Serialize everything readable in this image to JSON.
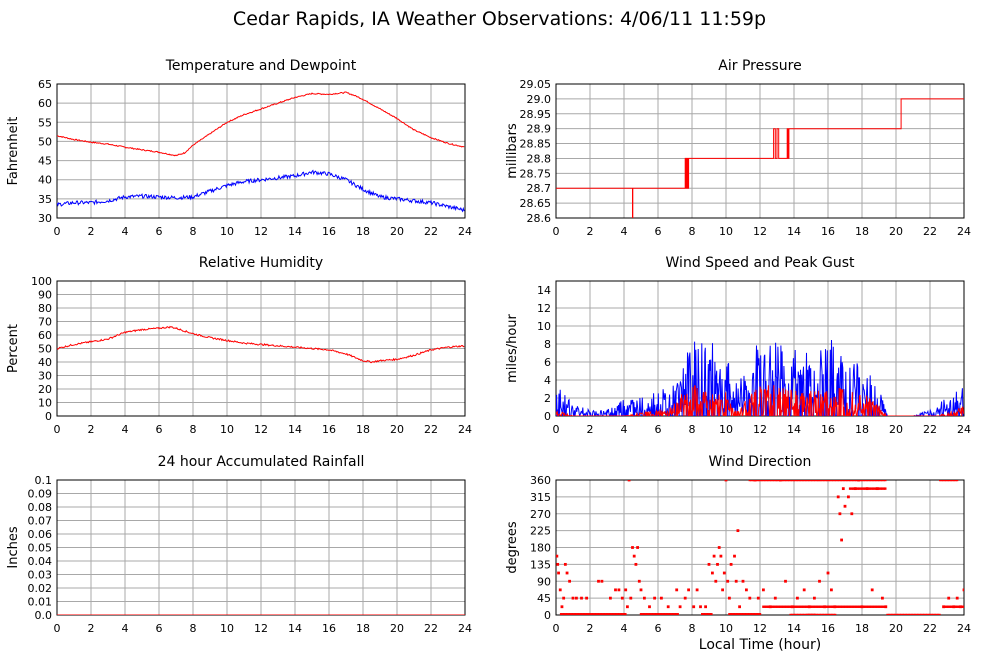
{
  "page": {
    "title": "Cedar Rapids, IA Weather Observations: 4/06/11 11:59p",
    "x_axis_label": "Local Time (hour)"
  },
  "chart_data": [
    {
      "id": "temp",
      "type": "line",
      "title": "Temperature and Dewpoint",
      "xlabel": "",
      "ylabel": "Fahrenheit",
      "xlim": [
        0,
        24
      ],
      "ylim": [
        30,
        65
      ],
      "xticks": [
        0,
        2,
        4,
        6,
        8,
        10,
        12,
        14,
        16,
        18,
        20,
        22,
        24
      ],
      "yticks": [
        30,
        35,
        40,
        45,
        50,
        55,
        60,
        65
      ],
      "grid": true,
      "series": [
        {
          "color": "#ff0000",
          "noise": 0.15,
          "x": [
            0,
            1,
            2,
            3,
            4,
            5,
            6,
            7,
            7.5,
            8,
            9,
            10,
            11,
            12,
            13,
            14,
            15,
            16,
            17,
            17.5,
            18,
            19,
            20,
            21,
            22,
            23,
            24
          ],
          "y": [
            51.5,
            50.5,
            49.8,
            49.3,
            48.5,
            47.8,
            47.2,
            46.3,
            47,
            49,
            52,
            55,
            57,
            58.5,
            60,
            61.5,
            62.5,
            62.3,
            62.8,
            62,
            61,
            58.5,
            56,
            53,
            51,
            49.5,
            48.5
          ]
        },
        {
          "color": "#0000ff",
          "noise": 0.5,
          "x": [
            0,
            1,
            2,
            3,
            4,
            5,
            6,
            7,
            8,
            9,
            10,
            11,
            12,
            13,
            14,
            15,
            16,
            17,
            18,
            19,
            20,
            21,
            22,
            23,
            24
          ],
          "y": [
            33.5,
            34,
            34,
            34.5,
            35.5,
            35.7,
            35.5,
            35.3,
            35.5,
            37,
            38.5,
            39.5,
            40,
            40.5,
            41,
            42,
            41.5,
            40,
            37.5,
            35.5,
            35,
            34.5,
            34,
            33,
            32
          ]
        }
      ]
    },
    {
      "id": "pressure",
      "type": "line",
      "title": "Air Pressure",
      "xlabel": "",
      "ylabel": "millibars",
      "xlim": [
        0,
        24
      ],
      "ylim": [
        28.6,
        29.05
      ],
      "xticks": [
        0,
        2,
        4,
        6,
        8,
        10,
        12,
        14,
        16,
        18,
        20,
        22,
        24
      ],
      "yticks": [
        28.6,
        28.65,
        28.7,
        28.75,
        28.8,
        28.85,
        28.9,
        28.95,
        29.0,
        29.05
      ],
      "ytick_labels": [
        "28.6",
        "28.65",
        "28.7",
        "28.75",
        "28.8",
        "28.85",
        "28.9",
        "28.95",
        "29.0",
        "29.05"
      ],
      "grid": true,
      "series": [
        {
          "color": "#ff0000",
          "noise": 0,
          "x": [
            0,
            4.5,
            4.5,
            4.52,
            4.52,
            7.6,
            7.6,
            7.65,
            7.65,
            7.7,
            7.7,
            7.75,
            7.75,
            7.8,
            7.8,
            7.85,
            7.85,
            12.8,
            12.8,
            12.9,
            12.9,
            13.0,
            13.0,
            13.1,
            13.1,
            13.6,
            13.6,
            13.65,
            13.65,
            13.7,
            13.7,
            14.0,
            14.0,
            20.3,
            20.3,
            24
          ],
          "y": [
            28.7,
            28.7,
            28.6,
            28.6,
            28.7,
            28.7,
            28.8,
            28.8,
            28.7,
            28.7,
            28.8,
            28.8,
            28.7,
            28.7,
            28.8,
            28.8,
            28.8,
            28.8,
            28.9,
            28.9,
            28.8,
            28.8,
            28.9,
            28.9,
            28.8,
            28.8,
            28.9,
            28.9,
            28.8,
            28.8,
            28.9,
            28.9,
            28.9,
            28.9,
            29.0,
            29.0
          ]
        }
      ]
    },
    {
      "id": "humidity",
      "type": "line",
      "title": "Relative Humidity",
      "xlabel": "",
      "ylabel": "Percent",
      "xlim": [
        0,
        24
      ],
      "ylim": [
        0,
        100
      ],
      "xticks": [
        0,
        2,
        4,
        6,
        8,
        10,
        12,
        14,
        16,
        18,
        20,
        22,
        24
      ],
      "yticks": [
        0,
        10,
        20,
        30,
        40,
        50,
        60,
        70,
        80,
        90,
        100
      ],
      "grid": true,
      "series": [
        {
          "color": "#ff0000",
          "noise": 0.6,
          "x": [
            0,
            1,
            2,
            3,
            4,
            5,
            6,
            6.7,
            7,
            8,
            9,
            10,
            11,
            12,
            13,
            14,
            15,
            16,
            17,
            18,
            18.5,
            19,
            20,
            21,
            22,
            23,
            24
          ],
          "y": [
            50,
            53,
            55,
            57,
            62,
            64,
            65,
            66,
            65,
            61,
            58,
            56,
            54,
            53,
            52,
            51,
            50,
            49,
            46,
            41,
            40,
            41,
            42,
            45,
            49,
            51,
            52
          ]
        }
      ]
    },
    {
      "id": "wind",
      "type": "line",
      "title": "Wind Speed and Peak Gust",
      "xlabel": "",
      "ylabel": "miles/hour",
      "xlim": [
        0,
        24
      ],
      "ylim": [
        0,
        15
      ],
      "xticks": [
        0,
        2,
        4,
        6,
        8,
        10,
        12,
        14,
        16,
        18,
        20,
        22,
        24
      ],
      "yticks": [
        0,
        2,
        4,
        6,
        8,
        10,
        12,
        14
      ],
      "grid": true,
      "series": [
        {
          "color": "#0000ff",
          "x": [
            0,
            0.5,
            1,
            2,
            3,
            4,
            5,
            6,
            7,
            7.5,
            8,
            9,
            10,
            10.5,
            11,
            12,
            13,
            14,
            15,
            16,
            16.5,
            17,
            18,
            19,
            19.5,
            20,
            21,
            22,
            22.5,
            23,
            24
          ],
          "y": [
            2.5,
            2,
            1,
            0.5,
            0.5,
            1.5,
            1.5,
            2,
            2.5,
            4,
            6.5,
            6,
            5,
            2.5,
            3.5,
            6.5,
            6,
            5.5,
            5.5,
            6.5,
            5.5,
            5,
            4.5,
            2.5,
            0,
            0,
            0,
            0.5,
            1,
            1.5,
            2.5
          ]
        },
        {
          "color": "#ff0000",
          "x": [
            0,
            1,
            2,
            3,
            4,
            5,
            6,
            7,
            7.5,
            8,
            9,
            10,
            10.5,
            11,
            12,
            13,
            14,
            15,
            16,
            17,
            18,
            19,
            19.5,
            20,
            22.5,
            23,
            24
          ],
          "y": [
            0.5,
            0,
            0,
            0,
            0,
            0.3,
            0.5,
            1,
            2,
            2.5,
            2,
            2,
            0.5,
            1,
            2.5,
            2.5,
            2,
            2,
            2.5,
            2.5,
            2,
            1,
            0,
            0,
            0,
            0.3,
            0.8
          ]
        }
      ]
    },
    {
      "id": "rain",
      "type": "line",
      "title": "24 hour Accumulated Rainfall",
      "xlabel": "",
      "ylabel": "Inches",
      "xlim": [
        0,
        24
      ],
      "ylim": [
        0,
        0.1
      ],
      "xticks": [
        0,
        2,
        4,
        6,
        8,
        10,
        12,
        14,
        16,
        18,
        20,
        22,
        24
      ],
      "yticks": [
        0,
        0.01,
        0.02,
        0.03,
        0.04,
        0.05,
        0.06,
        0.07,
        0.08,
        0.09,
        0.1
      ],
      "ytick_labels": [
        "0.0",
        "0.01",
        "0.02",
        "0.03",
        "0.04",
        "0.05",
        "0.06",
        "0.07",
        "0.08",
        "0.09",
        "0.1"
      ],
      "grid": true,
      "series": [
        {
          "color": "#ff0000",
          "noise": 0,
          "x": [
            0,
            24
          ],
          "y": [
            0,
            0
          ]
        }
      ]
    },
    {
      "id": "winddir",
      "type": "scatter",
      "title": "Wind Direction",
      "xlabel": "Local Time (hour)",
      "ylabel": "degrees",
      "xlim": [
        0,
        24
      ],
      "ylim": [
        0,
        360
      ],
      "xticks": [
        0,
        2,
        4,
        6,
        8,
        10,
        12,
        14,
        16,
        18,
        20,
        22,
        24
      ],
      "yticks": [
        0,
        45,
        90,
        135,
        180,
        225,
        270,
        315,
        360
      ],
      "grid": true,
      "series": [
        {
          "color": "#ff0000",
          "points": [
            [
              0.05,
              157
            ],
            [
              0.1,
              135
            ],
            [
              0.15,
              112
            ],
            [
              0.25,
              67
            ],
            [
              0.35,
              22
            ],
            [
              0.45,
              45
            ],
            [
              0.55,
              135
            ],
            [
              0.65,
              112
            ],
            [
              0.8,
              90
            ],
            [
              1.0,
              45
            ],
            [
              1.2,
              45
            ],
            [
              1.5,
              45
            ],
            [
              1.8,
              45
            ],
            [
              2.5,
              90
            ],
            [
              2.7,
              90
            ],
            [
              3.2,
              45
            ],
            [
              3.5,
              67
            ],
            [
              3.7,
              67
            ],
            [
              3.9,
              45
            ],
            [
              4.1,
              67
            ],
            [
              4.2,
              22
            ],
            [
              4.3,
              360
            ],
            [
              4.4,
              45
            ],
            [
              4.5,
              180
            ],
            [
              4.6,
              157
            ],
            [
              4.7,
              135
            ],
            [
              4.8,
              180
            ],
            [
              4.9,
              90
            ],
            [
              5.0,
              67
            ],
            [
              5.2,
              45
            ],
            [
              5.5,
              22
            ],
            [
              5.8,
              45
            ],
            [
              6.2,
              45
            ],
            [
              6.6,
              22
            ],
            [
              7.1,
              67
            ],
            [
              7.3,
              22
            ],
            [
              7.6,
              45
            ],
            [
              7.8,
              67
            ],
            [
              8.1,
              22
            ],
            [
              8.3,
              67
            ],
            [
              8.5,
              22
            ],
            [
              8.8,
              22
            ],
            [
              9.0,
              135
            ],
            [
              9.2,
              112
            ],
            [
              9.3,
              157
            ],
            [
              9.4,
              90
            ],
            [
              9.5,
              135
            ],
            [
              9.6,
              180
            ],
            [
              9.7,
              157
            ],
            [
              9.8,
              67
            ],
            [
              9.9,
              112
            ],
            [
              10.0,
              360
            ],
            [
              10.1,
              90
            ],
            [
              10.2,
              45
            ],
            [
              10.3,
              135
            ],
            [
              10.5,
              157
            ],
            [
              10.6,
              90
            ],
            [
              10.7,
              225
            ],
            [
              10.8,
              22
            ],
            [
              11.0,
              90
            ],
            [
              11.2,
              67
            ],
            [
              11.4,
              45
            ],
            [
              11.7,
              360
            ],
            [
              11.9,
              45
            ],
            [
              12.2,
              67
            ],
            [
              12.6,
              22
            ],
            [
              12.9,
              45
            ],
            [
              13.2,
              360
            ],
            [
              13.5,
              90
            ],
            [
              13.9,
              22
            ],
            [
              14.2,
              45
            ],
            [
              14.6,
              67
            ],
            [
              14.9,
              22
            ],
            [
              15.2,
              45
            ],
            [
              15.5,
              90
            ],
            [
              15.8,
              22
            ],
            [
              16.0,
              112
            ],
            [
              16.2,
              67
            ],
            [
              16.4,
              22
            ],
            [
              16.6,
              315
            ],
            [
              16.7,
              270
            ],
            [
              16.8,
              200
            ],
            [
              16.9,
              337
            ],
            [
              17.0,
              290
            ],
            [
              17.2,
              315
            ],
            [
              17.4,
              270
            ],
            [
              17.6,
              337
            ],
            [
              17.8,
              360
            ],
            [
              18.0,
              22
            ],
            [
              18.3,
              337
            ],
            [
              18.6,
              67
            ],
            [
              18.9,
              337
            ],
            [
              19.2,
              45
            ],
            [
              19.4,
              22
            ],
            [
              22.8,
              22
            ],
            [
              23.1,
              45
            ],
            [
              23.4,
              22
            ],
            [
              23.6,
              45
            ],
            [
              23.8,
              22
            ],
            [
              24.0,
              67
            ]
          ],
          "runs": [
            [
              0.3,
              4.1,
              2
            ],
            [
              5.0,
              7.2,
              2
            ],
            [
              8.6,
              9.2,
              2
            ],
            [
              10.2,
              12.0,
              2
            ],
            [
              12.2,
              14.0,
              22
            ],
            [
              14.0,
              16.3,
              22
            ],
            [
              16.3,
              19.4,
              22
            ],
            [
              19.5,
              22.6,
              0
            ],
            [
              22.8,
              24,
              22
            ],
            [
              11.4,
              13.0,
              360
            ],
            [
              13.0,
              15.5,
              360
            ],
            [
              15.5,
              19.4,
              360
            ],
            [
              17.3,
              19.4,
              337
            ],
            [
              22.6,
              23.6,
              360
            ],
            [
              13.8,
              15.3,
              0
            ],
            [
              14.8,
              16.5,
              0
            ]
          ]
        }
      ]
    }
  ]
}
